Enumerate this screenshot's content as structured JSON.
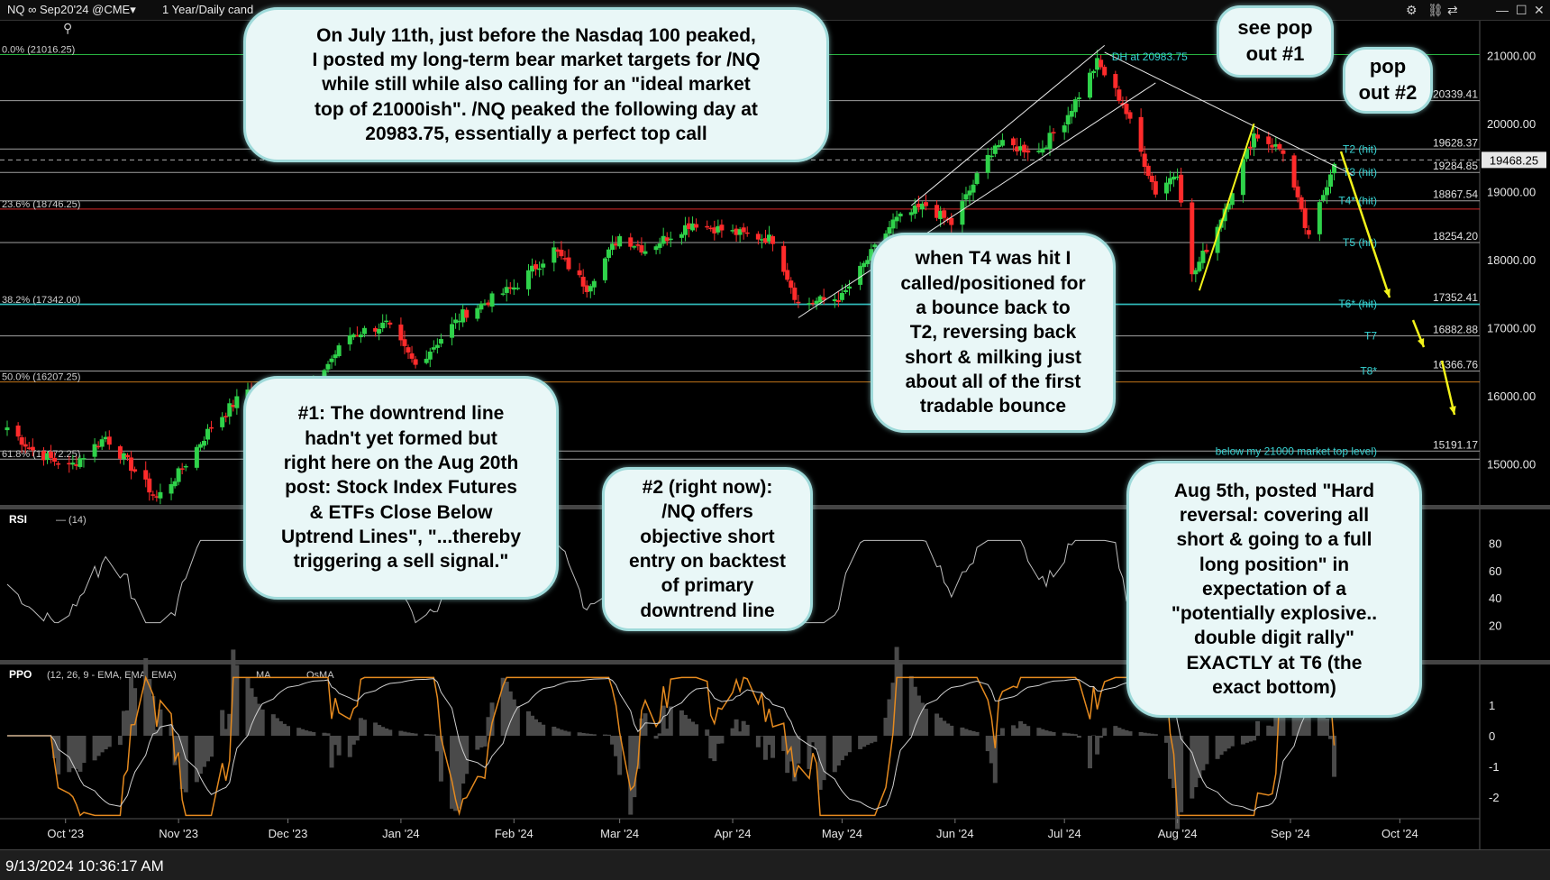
{
  "header": {
    "symbol": "NQ ∞ Sep20'24 @CME▾",
    "timeframe": "1 Year/Daily cand"
  },
  "footer": {
    "timestamp": "9/13/2024 10:36:17 AM"
  },
  "colors": {
    "up": "#2fd24a",
    "down": "#ff2b2b",
    "cyan": "#37d3d3",
    "yellow": "#f2f21a",
    "orange": "#e58a1f",
    "grid": "#2a2a2a"
  },
  "icons": [
    "zoom-in-icon",
    "zoom-out-icon",
    "hand-icon",
    "crosshair-icon",
    "undo-icon",
    "redo-icon",
    "arrow-icon",
    "cursor-icon"
  ],
  "callouts": {
    "july": "On July 11th, just before the Nasdaq 100 peaked,\nI posted my long-term bear market targets for /NQ\nwhile still while also calling for an \"ideal market\ntop of 21000ish\". /NQ peaked the following day at\n20983.75, essentially a perfect top call",
    "popout1": "see pop\nout #1",
    "popout2": "pop\nout #2",
    "t4": "when T4 was hit I\ncalled/positioned for\na bounce back to\nT2, reversing back\nshort & milking just\nabout all of the first\ntradable bounce",
    "downtrend": "#1: The downtrend line\nhadn't yet formed but\nright here on the Aug 20th\npost: Stock Index Futures\n& ETFs Close Below\nUptrend Lines\", \"...thereby\ntriggering a sell signal.\"",
    "now": "#2 (right now):\n/NQ offers\nobjective short\nentry on backtest\nof primary\ndowntrend line",
    "aug5": "Aug 5th, posted \"Hard\nreversal: covering all\nshort & going to a full\nlong position\" in\nexpectation of a\n\"potentially explosive..\ndouble digit rally\"\nEXACTLY at T6 (the\nexact bottom)"
  },
  "chart_data": {
    "type": "candlestick",
    "title": "NQ ∞ Sep20'24 @CME",
    "ylim": [
      14400,
      21500
    ],
    "y_ticks": [
      15000,
      16000,
      17000,
      18000,
      19000,
      20000,
      21000
    ],
    "y_tick_labels": [
      "15000.00",
      "16000.00",
      "17000.00",
      "18000.00",
      "19000.00",
      "20000.00",
      "21000.00"
    ],
    "x_labels": [
      "Oct '23",
      "Nov '23",
      "Dec '23",
      "Jan '24",
      "Feb '24",
      "Mar '24",
      "Apr '24",
      "May '24",
      "Jun '24",
      "Jul '24",
      "Aug '24",
      "Sep '24",
      "Oct '24"
    ],
    "last_price": "19468.25",
    "price_anchors": [
      [
        "2023-09-15",
        15540
      ],
      [
        "2023-09-22",
        15200
      ],
      [
        "2023-10-02",
        14950
      ],
      [
        "2023-10-12",
        15400
      ],
      [
        "2023-10-20",
        14900
      ],
      [
        "2023-10-26",
        14500
      ],
      [
        "2023-11-01",
        14860
      ],
      [
        "2023-11-10",
        15550
      ],
      [
        "2023-11-20",
        16100
      ],
      [
        "2023-12-01",
        16050
      ],
      [
        "2023-12-08",
        16200
      ],
      [
        "2023-12-18",
        16900
      ],
      [
        "2023-12-28",
        17050
      ],
      [
        "2024-01-05",
        16450
      ],
      [
        "2024-01-18",
        17200
      ],
      [
        "2024-02-01",
        17600
      ],
      [
        "2024-02-12",
        18150
      ],
      [
        "2024-02-21",
        17600
      ],
      [
        "2024-03-01",
        18350
      ],
      [
        "2024-03-08",
        18150
      ],
      [
        "2024-03-21",
        18550
      ],
      [
        "2024-04-01",
        18400
      ],
      [
        "2024-04-12",
        18300
      ],
      [
        "2024-04-19",
        17350
      ],
      [
        "2024-05-01",
        17450
      ],
      [
        "2024-05-15",
        18560
      ],
      [
        "2024-05-24",
        18800
      ],
      [
        "2024-05-31",
        18530
      ],
      [
        "2024-06-12",
        19700
      ],
      [
        "2024-06-24",
        19600
      ],
      [
        "2024-07-01",
        20050
      ],
      [
        "2024-07-10",
        20900
      ],
      [
        "2024-07-17",
        20300
      ],
      [
        "2024-07-26",
        19000
      ],
      [
        "2024-08-01",
        19300
      ],
      [
        "2024-08-05",
        17750
      ],
      [
        "2024-08-12",
        18500
      ],
      [
        "2024-08-22",
        19850
      ],
      [
        "2024-08-30",
        19600
      ],
      [
        "2024-09-06",
        18300
      ],
      [
        "2024-09-13",
        19468
      ]
    ],
    "levels": [
      {
        "label": "0.0% (21016.25)",
        "value": 21016.25,
        "color": "#2fd24a",
        "side": "left"
      },
      {
        "label": "20339.41",
        "value": 20339.41,
        "color": "#bbbbbb",
        "side": "right"
      },
      {
        "label": "T2 (hit)",
        "price": "19628.37",
        "value": 19628.37,
        "color": "#bbbbbb",
        "side": "right"
      },
      {
        "label": "T3 (hit)",
        "price": "19284.85",
        "value": 19284.85,
        "color": "#bbbbbb",
        "side": "right"
      },
      {
        "label": "23.6% (18746.25)",
        "value": 18746.25,
        "color": "#ff3333",
        "side": "left"
      },
      {
        "label": "T4* (hit)",
        "price": "18867.54",
        "value": 18867.54,
        "color": "#bbbbbb",
        "side": "right"
      },
      {
        "label": "T5 (hit)",
        "price": "18254.20",
        "value": 18254.2,
        "color": "#bbbbbb",
        "side": "right"
      },
      {
        "label": "38.2% (17342.00)",
        "value": 17342.0,
        "color": "#37d3d3",
        "side": "left"
      },
      {
        "label": "T6* (hit)",
        "price": "17352.41",
        "value": 17352.41,
        "color": "#37d3d3",
        "side": "right"
      },
      {
        "label": "T7",
        "price": "16882.88",
        "value": 16882.88,
        "color": "#bbbbbb",
        "side": "right"
      },
      {
        "label": "50.0% (16207.25)",
        "value": 16207.25,
        "color": "#e58a1f",
        "side": "left"
      },
      {
        "label": "T8*",
        "price": "16366.76",
        "value": 16366.76,
        "color": "#bbbbbb",
        "side": "right"
      },
      {
        "label": "61.8% (15072.25)",
        "value": 15072.25,
        "color": "#bbbbbb",
        "side": "left"
      },
      {
        "label": "below my 21000 market top level)",
        "price": "15191.17",
        "value": 15191.17,
        "color": "#bbbbbb",
        "side": "right"
      }
    ],
    "dh_label": "DH at 20983.75",
    "indicators": {
      "rsi": {
        "label": "RSI",
        "params": "(14)",
        "ticks": [
          80,
          60,
          40,
          20
        ]
      },
      "ppo": {
        "label": "PPO",
        "params": "(12, 26, 9 - EMA, EMA, EMA)",
        "ma": "MA",
        "osma": "OsMA",
        "ticks": [
          1,
          0,
          -1,
          -2
        ]
      }
    }
  }
}
